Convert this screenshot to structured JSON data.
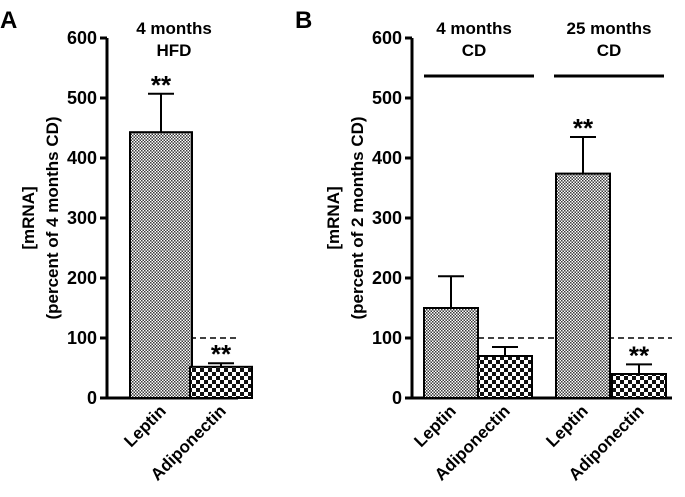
{
  "chart_data": [
    {
      "type": "bar",
      "panel": "A",
      "ylabel_lines": [
        "[mRNA]",
        "(percent of 4 months CD)"
      ],
      "ylim": [
        0,
        600
      ],
      "yticks": [
        0,
        100,
        200,
        300,
        400,
        500,
        600
      ],
      "reference_line": 100,
      "groups": [
        {
          "label_lines": [
            "4 months",
            "HFD"
          ],
          "bars": [
            {
              "category": "Leptin",
              "value": 443,
              "error": 64,
              "significance": "**",
              "pattern": "fine"
            },
            {
              "category": "Adiponectin",
              "value": 52,
              "error": 6,
              "significance": "**",
              "pattern": "coarse"
            }
          ]
        }
      ]
    },
    {
      "type": "bar",
      "panel": "B",
      "ylabel_lines": [
        "[mRNA]",
        "(percent of 2 months CD)"
      ],
      "ylim": [
        0,
        600
      ],
      "yticks": [
        0,
        100,
        200,
        300,
        400,
        500,
        600
      ],
      "reference_line": 100,
      "groups": [
        {
          "label_lines": [
            "4 months",
            "CD"
          ],
          "bars": [
            {
              "category": "Leptin",
              "value": 150,
              "error": 53,
              "significance": "",
              "pattern": "fine"
            },
            {
              "category": "Adiponectin",
              "value": 70,
              "error": 15,
              "significance": "",
              "pattern": "coarse"
            }
          ]
        },
        {
          "label_lines": [
            "25 months",
            "CD"
          ],
          "bars": [
            {
              "category": "Leptin",
              "value": 374,
              "error": 61,
              "significance": "**",
              "pattern": "fine"
            },
            {
              "category": "Adiponectin",
              "value": 40,
              "error": 16,
              "significance": "**",
              "pattern": "coarse"
            }
          ]
        }
      ]
    }
  ]
}
